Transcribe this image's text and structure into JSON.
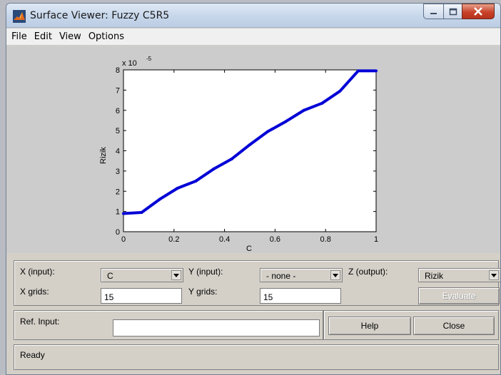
{
  "window": {
    "title": "Surface Viewer: Fuzzy C5R5",
    "icon": "matlab-icon"
  },
  "menu": [
    "File",
    "Edit",
    "View",
    "Options"
  ],
  "chart_data": {
    "type": "line",
    "xlabel": "C",
    "ylabel": "Rizik",
    "exponent_label": "x 10",
    "exponent": "-5",
    "xlim": [
      0,
      1
    ],
    "ylim": [
      0,
      8
    ],
    "xticks": [
      "0",
      "0.2",
      "0.4",
      "0.6",
      "0.8",
      "1"
    ],
    "yticks": [
      "0",
      "1",
      "2",
      "3",
      "4",
      "5",
      "6",
      "7",
      "8"
    ],
    "grid": false,
    "series": [
      {
        "color": "#0000d6",
        "x": [
          0,
          0.072,
          0.143,
          0.214,
          0.286,
          0.357,
          0.429,
          0.5,
          0.571,
          0.643,
          0.714,
          0.786,
          0.857,
          0.929,
          1.0
        ],
        "y": [
          0.9,
          0.95,
          1.6,
          2.15,
          2.5,
          3.1,
          3.6,
          4.3,
          4.95,
          5.45,
          6.0,
          6.35,
          6.95,
          7.95,
          7.95
        ]
      }
    ]
  },
  "controls": {
    "x_input_label": "X (input):",
    "x_input_value": "C",
    "y_input_label": "Y (input):",
    "y_input_value": "- none -",
    "z_output_label": "Z (output):",
    "z_output_value": "Rizik",
    "x_grids_label": "X grids:",
    "x_grids_value": "15",
    "y_grids_label": "Y grids:",
    "y_grids_value": "15",
    "evaluate_label": "Evaluate"
  },
  "ref": {
    "label": "Ref. Input:",
    "value": ""
  },
  "buttons": {
    "help": "Help",
    "close": "Close"
  },
  "status": {
    "text": "Ready"
  }
}
